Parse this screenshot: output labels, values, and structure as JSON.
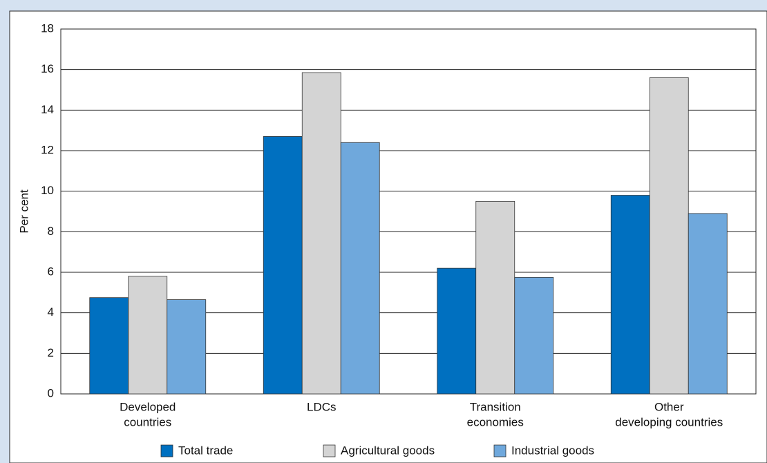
{
  "chart_data": {
    "type": "bar",
    "y_label": "Per cent",
    "categories": [
      [
        "Developed",
        "countries"
      ],
      [
        "LDCs"
      ],
      [
        "Transition",
        "economies"
      ],
      [
        "Other",
        "developing countries"
      ]
    ],
    "series": [
      {
        "name": "Total trade",
        "color": "#0070c0",
        "values": [
          4.75,
          12.7,
          6.2,
          9.8
        ]
      },
      {
        "name": "Agricultural goods",
        "color": "#d4d4d4",
        "values": [
          5.8,
          15.85,
          9.5,
          15.6
        ]
      },
      {
        "name": "Industrial goods",
        "color": "#6fa8dc",
        "values": [
          4.65,
          12.4,
          5.75,
          8.9
        ]
      }
    ],
    "ylim": [
      0,
      18
    ],
    "yticks": [
      0,
      2,
      4,
      6,
      8,
      10,
      12,
      14,
      16,
      18
    ],
    "grid": true
  }
}
